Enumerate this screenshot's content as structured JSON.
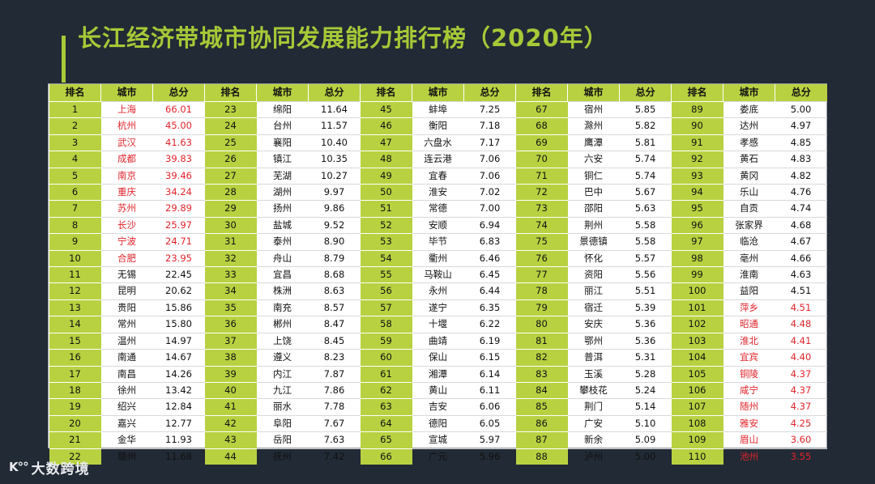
{
  "title": "长江经济带城市协同发展能力排行榜（2020年）",
  "header": {
    "rank": "排名",
    "city": "城市",
    "score": "总分"
  },
  "colors": {
    "accent": "#a6c937",
    "header_bg": "#b8d141",
    "highlight": "#e0242b",
    "background": "#222a35"
  },
  "logo": {
    "mark": "K°°",
    "text": "大数跨境"
  },
  "columns": [
    [
      {
        "rank": "1",
        "city": "上海",
        "score": "66.01",
        "hl": true
      },
      {
        "rank": "2",
        "city": "杭州",
        "score": "45.00",
        "hl": true
      },
      {
        "rank": "3",
        "city": "武汉",
        "score": "41.63",
        "hl": true
      },
      {
        "rank": "4",
        "city": "成都",
        "score": "39.83",
        "hl": true
      },
      {
        "rank": "5",
        "city": "南京",
        "score": "39.46",
        "hl": true
      },
      {
        "rank": "6",
        "city": "重庆",
        "score": "34.24",
        "hl": true
      },
      {
        "rank": "7",
        "city": "苏州",
        "score": "29.89",
        "hl": true
      },
      {
        "rank": "8",
        "city": "长沙",
        "score": "25.97",
        "hl": true
      },
      {
        "rank": "9",
        "city": "宁波",
        "score": "24.71",
        "hl": true
      },
      {
        "rank": "10",
        "city": "合肥",
        "score": "23.95",
        "hl": true
      },
      {
        "rank": "11",
        "city": "无锡",
        "score": "22.45",
        "hl": false
      },
      {
        "rank": "12",
        "city": "昆明",
        "score": "20.62",
        "hl": false
      },
      {
        "rank": "13",
        "city": "贵阳",
        "score": "15.86",
        "hl": false
      },
      {
        "rank": "14",
        "city": "常州",
        "score": "15.80",
        "hl": false
      },
      {
        "rank": "15",
        "city": "温州",
        "score": "14.97",
        "hl": false
      },
      {
        "rank": "16",
        "city": "南通",
        "score": "14.67",
        "hl": false
      },
      {
        "rank": "17",
        "city": "南昌",
        "score": "14.26",
        "hl": false
      },
      {
        "rank": "18",
        "city": "徐州",
        "score": "13.42",
        "hl": false
      },
      {
        "rank": "19",
        "city": "绍兴",
        "score": "12.84",
        "hl": false
      },
      {
        "rank": "20",
        "city": "嘉兴",
        "score": "12.77",
        "hl": false
      },
      {
        "rank": "21",
        "city": "金华",
        "score": "11.93",
        "hl": false
      },
      {
        "rank": "22",
        "city": "赣州",
        "score": "11.68",
        "hl": false
      }
    ],
    [
      {
        "rank": "23",
        "city": "绵阳",
        "score": "11.64",
        "hl": false
      },
      {
        "rank": "24",
        "city": "台州",
        "score": "11.57",
        "hl": false
      },
      {
        "rank": "25",
        "city": "襄阳",
        "score": "10.40",
        "hl": false
      },
      {
        "rank": "26",
        "city": "镇江",
        "score": "10.35",
        "hl": false
      },
      {
        "rank": "27",
        "city": "芜湖",
        "score": "10.27",
        "hl": false
      },
      {
        "rank": "28",
        "city": "湖州",
        "score": "9.97",
        "hl": false
      },
      {
        "rank": "29",
        "city": "扬州",
        "score": "9.86",
        "hl": false
      },
      {
        "rank": "30",
        "city": "盐城",
        "score": "9.52",
        "hl": false
      },
      {
        "rank": "31",
        "city": "泰州",
        "score": "8.90",
        "hl": false
      },
      {
        "rank": "32",
        "city": "舟山",
        "score": "8.79",
        "hl": false
      },
      {
        "rank": "33",
        "city": "宜昌",
        "score": "8.68",
        "hl": false
      },
      {
        "rank": "34",
        "city": "株洲",
        "score": "8.63",
        "hl": false
      },
      {
        "rank": "35",
        "city": "南充",
        "score": "8.57",
        "hl": false
      },
      {
        "rank": "36",
        "city": "郴州",
        "score": "8.47",
        "hl": false
      },
      {
        "rank": "37",
        "city": "上饶",
        "score": "8.45",
        "hl": false
      },
      {
        "rank": "38",
        "city": "遵义",
        "score": "8.23",
        "hl": false
      },
      {
        "rank": "39",
        "city": "内江",
        "score": "7.87",
        "hl": false
      },
      {
        "rank": "40",
        "city": "九江",
        "score": "7.86",
        "hl": false
      },
      {
        "rank": "41",
        "city": "丽水",
        "score": "7.78",
        "hl": false
      },
      {
        "rank": "42",
        "city": "阜阳",
        "score": "7.67",
        "hl": false
      },
      {
        "rank": "43",
        "city": "岳阳",
        "score": "7.63",
        "hl": false
      },
      {
        "rank": "44",
        "city": "抚州",
        "score": "7.42",
        "hl": false
      }
    ],
    [
      {
        "rank": "45",
        "city": "蚌埠",
        "score": "7.25",
        "hl": false
      },
      {
        "rank": "46",
        "city": "衡阳",
        "score": "7.18",
        "hl": false
      },
      {
        "rank": "47",
        "city": "六盘水",
        "score": "7.17",
        "hl": false
      },
      {
        "rank": "48",
        "city": "连云港",
        "score": "7.06",
        "hl": false
      },
      {
        "rank": "49",
        "city": "宜春",
        "score": "7.06",
        "hl": false
      },
      {
        "rank": "50",
        "city": "淮安",
        "score": "7.02",
        "hl": false
      },
      {
        "rank": "51",
        "city": "常德",
        "score": "7.00",
        "hl": false
      },
      {
        "rank": "52",
        "city": "安顺",
        "score": "6.94",
        "hl": false
      },
      {
        "rank": "53",
        "city": "毕节",
        "score": "6.83",
        "hl": false
      },
      {
        "rank": "54",
        "city": "衢州",
        "score": "6.46",
        "hl": false
      },
      {
        "rank": "55",
        "city": "马鞍山",
        "score": "6.45",
        "hl": false
      },
      {
        "rank": "56",
        "city": "永州",
        "score": "6.44",
        "hl": false
      },
      {
        "rank": "57",
        "city": "遂宁",
        "score": "6.35",
        "hl": false
      },
      {
        "rank": "58",
        "city": "十堰",
        "score": "6.22",
        "hl": false
      },
      {
        "rank": "59",
        "city": "曲靖",
        "score": "6.19",
        "hl": false
      },
      {
        "rank": "60",
        "city": "保山",
        "score": "6.15",
        "hl": false
      },
      {
        "rank": "61",
        "city": "湘潭",
        "score": "6.14",
        "hl": false
      },
      {
        "rank": "62",
        "city": "黄山",
        "score": "6.11",
        "hl": false
      },
      {
        "rank": "63",
        "city": "吉安",
        "score": "6.06",
        "hl": false
      },
      {
        "rank": "64",
        "city": "德阳",
        "score": "6.05",
        "hl": false
      },
      {
        "rank": "65",
        "city": "宣城",
        "score": "5.97",
        "hl": false
      },
      {
        "rank": "66",
        "city": "广元",
        "score": "5.96",
        "hl": false
      }
    ],
    [
      {
        "rank": "67",
        "city": "宿州",
        "score": "5.85",
        "hl": false
      },
      {
        "rank": "68",
        "city": "滁州",
        "score": "5.82",
        "hl": false
      },
      {
        "rank": "69",
        "city": "鹰潭",
        "score": "5.81",
        "hl": false
      },
      {
        "rank": "70",
        "city": "六安",
        "score": "5.74",
        "hl": false
      },
      {
        "rank": "71",
        "city": "铜仁",
        "score": "5.74",
        "hl": false
      },
      {
        "rank": "72",
        "city": "巴中",
        "score": "5.67",
        "hl": false
      },
      {
        "rank": "73",
        "city": "邵阳",
        "score": "5.63",
        "hl": false
      },
      {
        "rank": "74",
        "city": "荆州",
        "score": "5.58",
        "hl": false
      },
      {
        "rank": "75",
        "city": "景德镇",
        "score": "5.58",
        "hl": false
      },
      {
        "rank": "76",
        "city": "怀化",
        "score": "5.57",
        "hl": false
      },
      {
        "rank": "77",
        "city": "资阳",
        "score": "5.56",
        "hl": false
      },
      {
        "rank": "78",
        "city": "丽江",
        "score": "5.51",
        "hl": false
      },
      {
        "rank": "79",
        "city": "宿迁",
        "score": "5.39",
        "hl": false
      },
      {
        "rank": "80",
        "city": "安庆",
        "score": "5.36",
        "hl": false
      },
      {
        "rank": "81",
        "city": "鄂州",
        "score": "5.36",
        "hl": false
      },
      {
        "rank": "82",
        "city": "普洱",
        "score": "5.31",
        "hl": false
      },
      {
        "rank": "83",
        "city": "玉溪",
        "score": "5.28",
        "hl": false
      },
      {
        "rank": "84",
        "city": "攀枝花",
        "score": "5.24",
        "hl": false
      },
      {
        "rank": "85",
        "city": "荆门",
        "score": "5.14",
        "hl": false
      },
      {
        "rank": "86",
        "city": "广安",
        "score": "5.10",
        "hl": false
      },
      {
        "rank": "87",
        "city": "新余",
        "score": "5.09",
        "hl": false
      },
      {
        "rank": "88",
        "city": "泸州",
        "score": "5.00",
        "hl": false
      }
    ],
    [
      {
        "rank": "89",
        "city": "娄底",
        "score": "5.00",
        "hl": false
      },
      {
        "rank": "90",
        "city": "达州",
        "score": "4.97",
        "hl": false
      },
      {
        "rank": "91",
        "city": "孝感",
        "score": "4.85",
        "hl": false
      },
      {
        "rank": "92",
        "city": "黄石",
        "score": "4.83",
        "hl": false
      },
      {
        "rank": "93",
        "city": "黄冈",
        "score": "4.82",
        "hl": false
      },
      {
        "rank": "94",
        "city": "乐山",
        "score": "4.76",
        "hl": false
      },
      {
        "rank": "95",
        "city": "自贡",
        "score": "4.74",
        "hl": false
      },
      {
        "rank": "96",
        "city": "张家界",
        "score": "4.68",
        "hl": false
      },
      {
        "rank": "97",
        "city": "临沧",
        "score": "4.67",
        "hl": false
      },
      {
        "rank": "98",
        "city": "亳州",
        "score": "4.66",
        "hl": false
      },
      {
        "rank": "99",
        "city": "淮南",
        "score": "4.63",
        "hl": false
      },
      {
        "rank": "100",
        "city": "益阳",
        "score": "4.51",
        "hl": false
      },
      {
        "rank": "101",
        "city": "萍乡",
        "score": "4.51",
        "hl": true
      },
      {
        "rank": "102",
        "city": "昭通",
        "score": "4.48",
        "hl": true
      },
      {
        "rank": "103",
        "city": "淮北",
        "score": "4.41",
        "hl": true
      },
      {
        "rank": "104",
        "city": "宜宾",
        "score": "4.40",
        "hl": true
      },
      {
        "rank": "105",
        "city": "铜陵",
        "score": "4.37",
        "hl": true
      },
      {
        "rank": "106",
        "city": "咸宁",
        "score": "4.37",
        "hl": true
      },
      {
        "rank": "107",
        "city": "随州",
        "score": "4.37",
        "hl": true
      },
      {
        "rank": "108",
        "city": "雅安",
        "score": "4.25",
        "hl": true
      },
      {
        "rank": "109",
        "city": "眉山",
        "score": "3.60",
        "hl": true
      },
      {
        "rank": "110",
        "city": "池州",
        "score": "3.55",
        "hl": true
      }
    ]
  ]
}
